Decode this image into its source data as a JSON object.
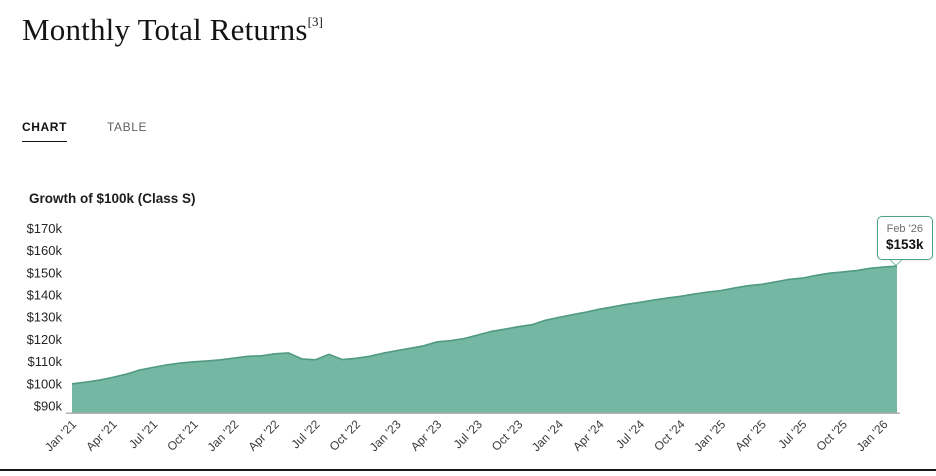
{
  "page": {
    "title": "Monthly Total Returns",
    "title_sup": "[3]"
  },
  "tabs": {
    "chart": "CHART",
    "table": "TABLE"
  },
  "chart_data": {
    "type": "area",
    "title": "Growth of $100k (Class S)",
    "grid": false,
    "legend": false,
    "ylim": [
      90,
      170
    ],
    "x": [
      "Jan '21",
      "Feb '21",
      "Mar '21",
      "Apr '21",
      "May '21",
      "Jun '21",
      "Jul '21",
      "Aug '21",
      "Sep '21",
      "Oct '21",
      "Nov '21",
      "Dec '21",
      "Jan '22",
      "Feb '22",
      "Mar '22",
      "Apr '22",
      "May '22",
      "Jun '22",
      "Jul '22",
      "Aug '22",
      "Sep '22",
      "Oct '22",
      "Nov '22",
      "Dec '22",
      "Jan '23",
      "Feb '23",
      "Mar '23",
      "Apr '23",
      "May '23",
      "Jun '23",
      "Jul '23",
      "Aug '23",
      "Sep '23",
      "Oct '23",
      "Nov '23",
      "Dec '23",
      "Jan '24",
      "Feb '24",
      "Mar '24",
      "Apr '24",
      "May '24",
      "Jun '24",
      "Jul '24",
      "Aug '24",
      "Sep '24",
      "Oct '24",
      "Nov '24",
      "Dec '24",
      "Jan '25",
      "Feb '25",
      "Mar '25",
      "Apr '25",
      "May '25",
      "Jun '25",
      "Jul '25",
      "Aug '25",
      "Sep '25",
      "Oct '25",
      "Nov '25",
      "Dec '25",
      "Jan '26",
      "Feb '26"
    ],
    "series": [
      {
        "name": "Class S",
        "unit": "$k",
        "values": [
          100.0,
          100.7,
          101.6,
          102.9,
          104.3,
          106.2,
          107.4,
          108.5,
          109.3,
          109.9,
          110.3,
          110.8,
          111.6,
          112.4,
          112.6,
          113.5,
          113.9,
          111.2,
          110.8,
          113.3,
          110.9,
          111.5,
          112.4,
          113.8,
          114.9,
          116.0,
          117.1,
          118.9,
          119.4,
          120.4,
          122.0,
          123.6,
          124.6,
          125.7,
          126.6,
          128.6,
          129.9,
          131.1,
          132.3,
          133.6,
          134.7,
          135.8,
          136.7,
          137.7,
          138.6,
          139.4,
          140.4,
          141.3,
          142.0,
          143.2,
          144.2,
          144.8,
          145.9,
          147.0,
          147.6,
          148.8,
          149.8,
          150.4,
          151.0,
          152.0,
          152.6,
          153.0
        ]
      }
    ],
    "x_ticks": [
      "Jan '21",
      "Apr '21",
      "Jul '21",
      "Oct '21",
      "Jan '22",
      "Apr '22",
      "Jul '22",
      "Oct '22",
      "Jan '23",
      "Apr '23",
      "Jul '23",
      "Oct '23",
      "Jan '24",
      "Apr '24",
      "Jul '24",
      "Oct '24",
      "Jan '25",
      "Apr '25",
      "Jul '25",
      "Oct '25",
      "Jan '26"
    ],
    "y_ticks": [
      {
        "value": 170,
        "label": "$170k"
      },
      {
        "value": 160,
        "label": "$160k"
      },
      {
        "value": 150,
        "label": "$150k"
      },
      {
        "value": 140,
        "label": "$140k"
      },
      {
        "value": 130,
        "label": "$130k"
      },
      {
        "value": 120,
        "label": "$120k"
      },
      {
        "value": 110,
        "label": "$110k"
      },
      {
        "value": 100,
        "label": "$100k"
      },
      {
        "value": 90,
        "label": "$90k"
      }
    ],
    "colors": {
      "area_fill": "#74b7a3",
      "line": "#4f9a81",
      "axis": "#a9a9a9",
      "tooltip_border": "#4ba18a"
    },
    "tooltip": {
      "label": "Feb '26",
      "value": "$153k"
    }
  }
}
